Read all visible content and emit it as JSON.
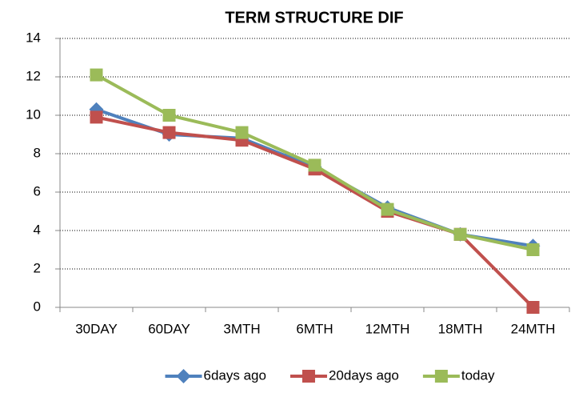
{
  "chart_data": {
    "type": "line",
    "title": "TERM STRUCTURE DIF",
    "categories": [
      "30DAY",
      "60DAY",
      "3MTH",
      "6MTH",
      "12MTH",
      "18MTH",
      "24MTH"
    ],
    "series": [
      {
        "name": "6days ago",
        "color": "#4f81bd",
        "marker": "diamond",
        "values": [
          10.3,
          9.0,
          8.8,
          7.3,
          5.2,
          3.8,
          3.2
        ]
      },
      {
        "name": "20days ago",
        "color": "#c0504d",
        "marker": "square",
        "values": [
          9.9,
          9.1,
          8.7,
          7.2,
          5.0,
          3.8,
          0.0
        ]
      },
      {
        "name": "today",
        "color": "#9bbb59",
        "marker": "square",
        "values": [
          12.1,
          10.0,
          9.1,
          7.4,
          5.1,
          3.8,
          3.0
        ]
      }
    ],
    "ylim": [
      0,
      14
    ],
    "yticks": [
      0,
      2,
      4,
      6,
      8,
      10,
      12,
      14
    ],
    "grid": true,
    "legend": "bottom"
  }
}
